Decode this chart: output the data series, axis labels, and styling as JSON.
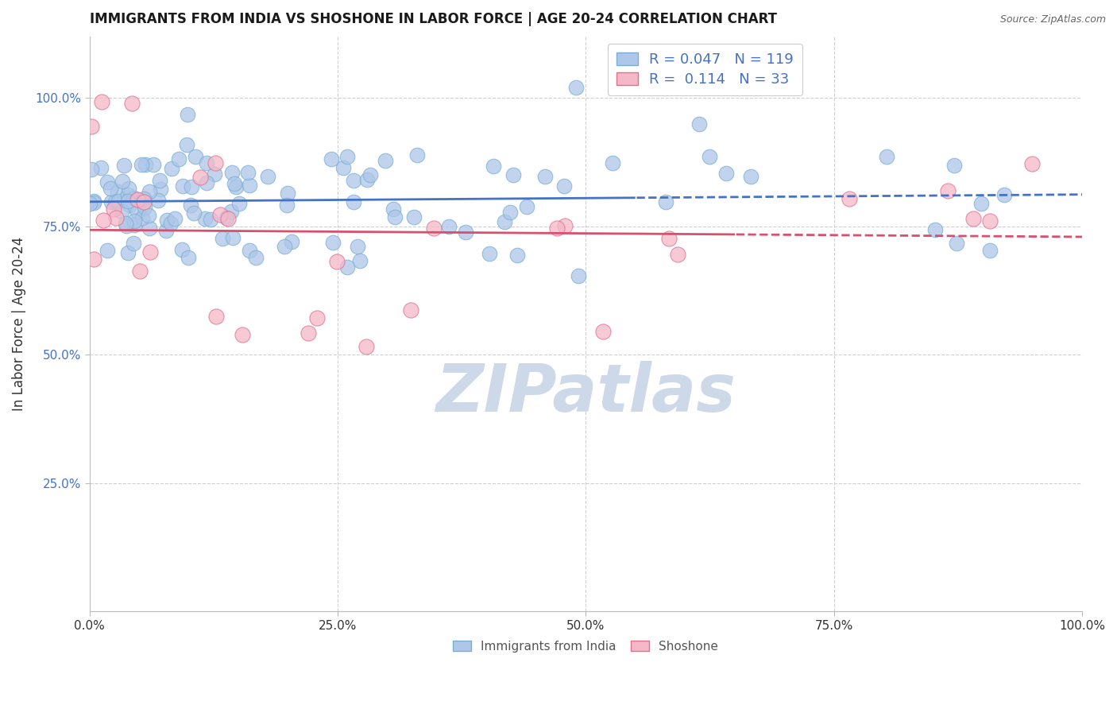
{
  "title": "IMMIGRANTS FROM INDIA VS SHOSHONE IN LABOR FORCE | AGE 20-24 CORRELATION CHART",
  "source": "Source: ZipAtlas.com",
  "ylabel": "In Labor Force | Age 20-24",
  "xlim": [
    0.0,
    1.0
  ],
  "ylim": [
    0.0,
    1.12
  ],
  "x_ticks": [
    0.0,
    0.25,
    0.5,
    0.75,
    1.0
  ],
  "x_tick_labels": [
    "0.0%",
    "25.0%",
    "50.0%",
    "75.0%",
    "100.0%"
  ],
  "y_ticks": [
    0.25,
    0.5,
    0.75,
    1.0
  ],
  "y_tick_labels": [
    "25.0%",
    "50.0%",
    "75.0%",
    "100.0%"
  ],
  "india_R": 0.047,
  "india_N": 119,
  "shoshone_R": 0.114,
  "shoshone_N": 33,
  "india_color": "#aec6e8",
  "india_edge": "#7aafd4",
  "shoshone_color": "#f4b8c8",
  "shoshone_edge": "#e07090",
  "trend_india_color": "#4472c4",
  "trend_shoshone_color": "#d94f6e",
  "watermark_color": "#cdd9e8",
  "background_color": "#ffffff",
  "title_color": "#1a1a1a",
  "source_color": "#666666",
  "tick_color_y": "#4472c4",
  "tick_color_x": "#333333",
  "grid_color": "#d0d0d0",
  "ylabel_color": "#333333"
}
